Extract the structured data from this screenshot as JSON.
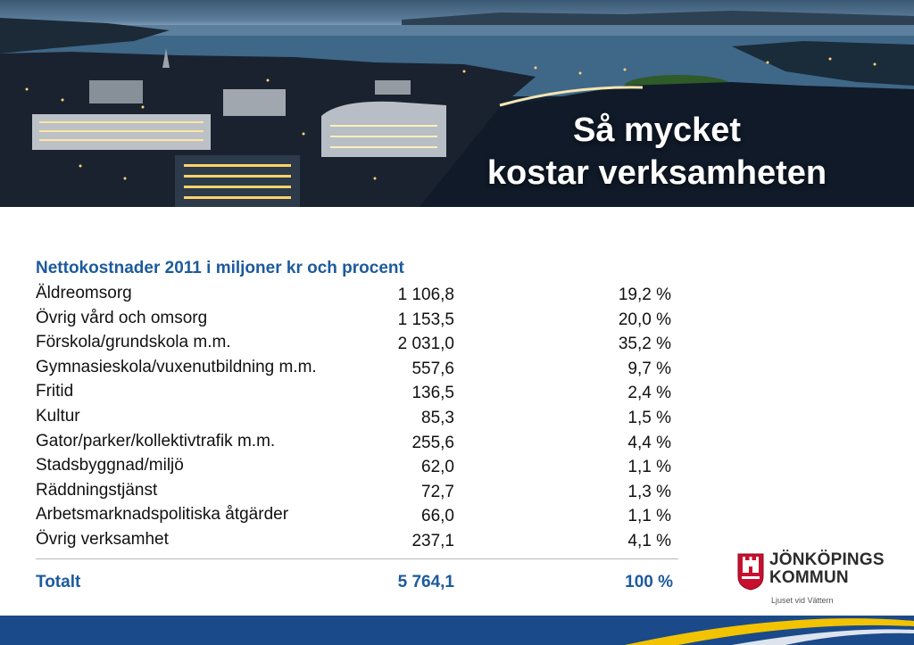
{
  "banner": {
    "title_line1": "Så mycket",
    "title_line2": "kostar verksamheten"
  },
  "table": {
    "title": "Nettokostnader 2011 i miljoner kr och procent",
    "rows": [
      {
        "category": "Äldreomsorg",
        "amount": "1 106,8",
        "percent": "19,2 %"
      },
      {
        "category": "Övrig vård och omsorg",
        "amount": "1 153,5",
        "percent": "20,0 %"
      },
      {
        "category": "Förskola/grundskola m.m.",
        "amount": "2 031,0",
        "percent": "35,2 %"
      },
      {
        "category": "Gymnasieskola/vuxenutbildning m.m.",
        "amount": "557,6",
        "percent": "9,7 %"
      },
      {
        "category": "Fritid",
        "amount": "136,5",
        "percent": "2,4 %"
      },
      {
        "category": "Kultur",
        "amount": "85,3",
        "percent": "1,5 %"
      },
      {
        "category": "Gator/parker/kollektivtrafik m.m.",
        "amount": "255,6",
        "percent": "4,4 %"
      },
      {
        "category": "Stadsbyggnad/miljö",
        "amount": "62,0",
        "percent": "1,1 %"
      },
      {
        "category": "Räddningstjänst",
        "amount": "72,7",
        "percent": "1,3 %"
      },
      {
        "category": "Arbetsmarknadspolitiska åtgärder",
        "amount": "66,0",
        "percent": "1,1 %"
      },
      {
        "category": "Övrig verksamhet",
        "amount": "237,1",
        "percent": "4,1 %"
      }
    ],
    "total": {
      "category": "Totalt",
      "amount": "5 764,1",
      "percent": "100 %"
    }
  },
  "logo": {
    "name_line1": "JÖNKÖPINGS",
    "name_line2": "KOMMUN",
    "tagline": "Ljuset vid Vättern"
  },
  "colors": {
    "accent_blue": "#1d5a9c",
    "footer_blue": "#1b4a8a",
    "footer_yellow": "#f2c300",
    "crest_red": "#c8102e"
  }
}
